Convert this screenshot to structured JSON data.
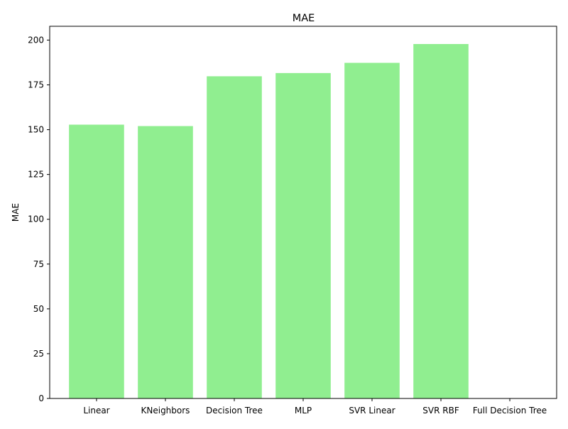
{
  "chart_data": {
    "type": "bar",
    "title": "MAE",
    "xlabel": "",
    "ylabel": "MAE",
    "categories": [
      "Linear",
      "KNeighbors",
      "Decision Tree",
      "MLP",
      "SVR Linear",
      "SVR RBF",
      "Full Decision Tree"
    ],
    "values": [
      152.8,
      152.0,
      179.8,
      181.6,
      187.3,
      197.8,
      0.0
    ],
    "ylim": [
      0,
      207.7
    ],
    "yticks": [
      0,
      25,
      50,
      75,
      100,
      125,
      150,
      175,
      200
    ],
    "bar_color": "#90ee90",
    "grid": false,
    "legend": "none"
  }
}
